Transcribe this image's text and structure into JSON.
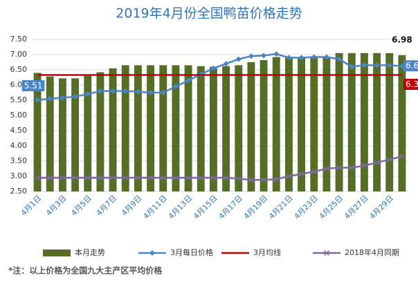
{
  "chart_data": {
    "type": "combo",
    "title": "2019年4月份全国鸭苗价格走势",
    "categories": [
      "4月1日",
      null,
      "4月3日",
      null,
      "4月5日",
      null,
      "4月7日",
      null,
      "4月9日",
      null,
      "4月11日",
      null,
      "4月13日",
      null,
      "4月15日",
      null,
      "4月17日",
      null,
      "4月19日",
      null,
      "4月21日",
      null,
      "4月23日",
      null,
      "4月25日",
      null,
      "4月27日",
      null,
      "4月29日",
      null
    ],
    "series": [
      {
        "name": "本月走势",
        "type": "bar",
        "color": "#566d27",
        "values": [
          6.4,
          6.28,
          6.22,
          6.22,
          6.3,
          6.42,
          6.55,
          6.65,
          6.65,
          6.65,
          6.65,
          6.65,
          6.65,
          6.62,
          6.6,
          6.62,
          6.65,
          6.75,
          6.82,
          6.92,
          6.92,
          6.92,
          6.92,
          6.92,
          7.05,
          7.05,
          7.05,
          7.05,
          7.05,
          6.98
        ]
      },
      {
        "name": "3月每日价格",
        "type": "line",
        "color": "#4a86c5",
        "marker": "diamond",
        "values": [
          5.51,
          5.55,
          5.58,
          5.62,
          5.7,
          5.8,
          5.8,
          5.8,
          5.78,
          5.75,
          5.75,
          5.95,
          6.15,
          6.35,
          6.55,
          6.7,
          6.85,
          6.95,
          6.97,
          7.02,
          6.9,
          6.9,
          6.92,
          6.92,
          6.85,
          6.6,
          6.65,
          6.65,
          6.65,
          6.62
        ]
      },
      {
        "name": "3月均线",
        "type": "line",
        "color": "#c00000",
        "values": [
          6.33,
          6.33,
          6.33,
          6.33,
          6.33,
          6.33,
          6.33,
          6.33,
          6.33,
          6.33,
          6.33,
          6.33,
          6.33,
          6.33,
          6.33,
          6.33,
          6.33,
          6.33,
          6.33,
          6.33,
          6.33,
          6.33,
          6.33,
          6.33,
          6.33,
          6.33,
          6.33,
          6.33,
          6.33,
          6.33
        ]
      },
      {
        "name": "2018年4月同期",
        "type": "line",
        "color": "#7d6a9c",
        "marker": "x",
        "values": [
          2.95,
          2.95,
          2.95,
          2.95,
          2.95,
          2.95,
          2.95,
          2.95,
          2.95,
          2.95,
          2.95,
          2.95,
          2.95,
          2.95,
          2.95,
          2.95,
          2.92,
          2.88,
          2.88,
          2.9,
          3.0,
          3.08,
          3.15,
          3.25,
          3.28,
          3.28,
          3.35,
          3.45,
          3.55,
          3.65
        ]
      }
    ],
    "ylim": [
      2.5,
      7.5
    ],
    "yticks": [
      {
        "value": 2.5,
        "label": "2.50"
      },
      {
        "value": 3,
        "label": "3.00"
      },
      {
        "value": 3.5,
        "label": "3.50"
      },
      {
        "value": 4,
        "label": "4.00"
      },
      {
        "value": 4.5,
        "label": "4.50"
      },
      {
        "value": 5,
        "label": "5.00"
      },
      {
        "value": 5.5,
        "label": "5.50"
      },
      {
        "value": 6,
        "label": "6.00"
      },
      {
        "value": 6.5,
        "label": "6.50"
      },
      {
        "value": 7,
        "label": "7.00"
      },
      {
        "value": 7.5,
        "label": "7.50"
      }
    ],
    "grid": true,
    "legend": "bottom",
    "note": "*注：以上价格为全国九大主产区平均价格"
  }
}
